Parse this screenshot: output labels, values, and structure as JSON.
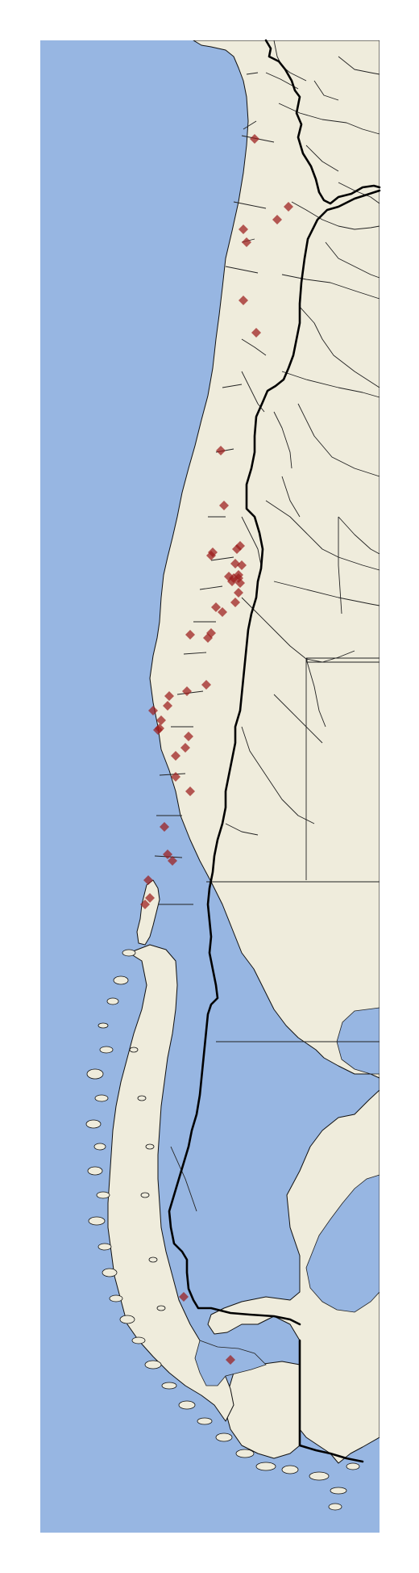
{
  "map": {
    "colors": {
      "ocean": "#97b6e2",
      "land": "#efecdc",
      "marker": "#9b1c1c",
      "border": "#000000"
    },
    "marker_shape": "diamond",
    "marker_opacity": 0.72
  }
}
